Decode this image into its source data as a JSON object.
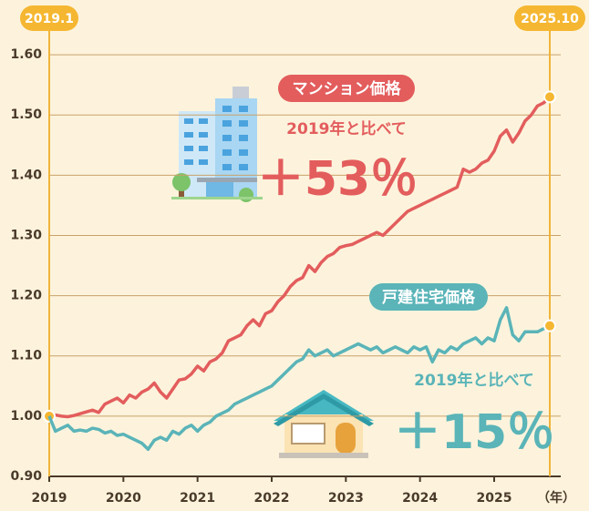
{
  "chart_data": {
    "type": "line",
    "categories": [
      "2019",
      null,
      null,
      null,
      null,
      null,
      null,
      null,
      null,
      null,
      null,
      null,
      "2020",
      null,
      null,
      null,
      null,
      null,
      null,
      null,
      null,
      null,
      null,
      null,
      "2021",
      null,
      null,
      null,
      null,
      null,
      null,
      null,
      null,
      null,
      null,
      null,
      "2022",
      null,
      null,
      null,
      null,
      null,
      null,
      null,
      null,
      null,
      null,
      null,
      "2023",
      null,
      null,
      null,
      null,
      null,
      null,
      null,
      null,
      null,
      null,
      null,
      "2024",
      null,
      null,
      null,
      null,
      null,
      null,
      null,
      null,
      null,
      null,
      null,
      "2025",
      null,
      null,
      null,
      null,
      null,
      null,
      null,
      null,
      null
    ],
    "x_unit": "（年）",
    "start_label": "2019.1",
    "end_label": "2025.10",
    "ylim": [
      0.9,
      1.65
    ],
    "yticks": [
      {
        "value": 0.9,
        "label": "0.90"
      },
      {
        "value": 1.0,
        "label": "1.00"
      },
      {
        "value": 1.1,
        "label": "1.10"
      },
      {
        "value": 1.2,
        "label": "1.20"
      },
      {
        "value": 1.3,
        "label": "1.30"
      },
      {
        "value": 1.4,
        "label": "1.40"
      },
      {
        "value": 1.5,
        "label": "1.50"
      },
      {
        "value": 1.6,
        "label": "1.60"
      }
    ],
    "grid": true,
    "series": [
      {
        "name": "マンション価格",
        "color": "#e35d5d",
        "annotation": "2019年と比べて",
        "change_label": "＋53％",
        "values": [
          1.0,
          1.002,
          1.0,
          0.999,
          1.001,
          1.004,
          1.007,
          1.01,
          1.006,
          1.02,
          1.025,
          1.03,
          1.022,
          1.035,
          1.03,
          1.04,
          1.045,
          1.055,
          1.04,
          1.03,
          1.045,
          1.06,
          1.062,
          1.07,
          1.083,
          1.075,
          1.09,
          1.095,
          1.105,
          1.125,
          1.13,
          1.135,
          1.15,
          1.16,
          1.15,
          1.17,
          1.175,
          1.19,
          1.2,
          1.215,
          1.225,
          1.23,
          1.25,
          1.24,
          1.255,
          1.265,
          1.27,
          1.28,
          1.283,
          1.285,
          1.29,
          1.295,
          1.3,
          1.305,
          1.3,
          1.31,
          1.32,
          1.33,
          1.34,
          1.345,
          1.35,
          1.355,
          1.36,
          1.365,
          1.37,
          1.375,
          1.38,
          1.41,
          1.405,
          1.41,
          1.42,
          1.425,
          1.44,
          1.465,
          1.475,
          1.455,
          1.47,
          1.49,
          1.5,
          1.515,
          1.52,
          1.53
        ]
      },
      {
        "name": "戸建住宅価格",
        "color": "#5ab4b8",
        "annotation": "2019年と比べて",
        "change_label": "＋15％",
        "values": [
          1.0,
          0.975,
          0.98,
          0.985,
          0.975,
          0.977,
          0.975,
          0.98,
          0.978,
          0.972,
          0.975,
          0.968,
          0.97,
          0.965,
          0.96,
          0.955,
          0.945,
          0.96,
          0.965,
          0.96,
          0.975,
          0.97,
          0.98,
          0.985,
          0.975,
          0.985,
          0.99,
          1.0,
          1.005,
          1.01,
          1.02,
          1.025,
          1.03,
          1.035,
          1.04,
          1.045,
          1.05,
          1.06,
          1.07,
          1.08,
          1.09,
          1.095,
          1.11,
          1.1,
          1.105,
          1.11,
          1.1,
          1.105,
          1.11,
          1.115,
          1.12,
          1.115,
          1.11,
          1.115,
          1.105,
          1.11,
          1.115,
          1.11,
          1.105,
          1.115,
          1.11,
          1.115,
          1.09,
          1.11,
          1.105,
          1.115,
          1.11,
          1.12,
          1.125,
          1.13,
          1.12,
          1.13,
          1.125,
          1.16,
          1.18,
          1.135,
          1.125,
          1.14,
          1.14,
          1.14,
          1.145,
          1.15
        ]
      }
    ]
  }
}
